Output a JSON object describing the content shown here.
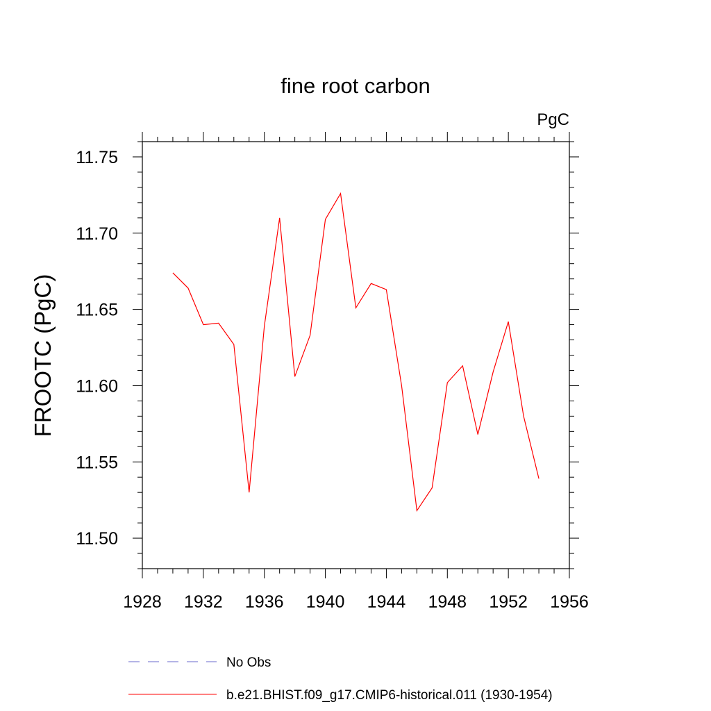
{
  "chart_data": {
    "type": "line",
    "title": "fine root carbon",
    "units_label": "PgC",
    "ylabel": "FROOTC  (PgC)",
    "xlabel": "",
    "xlim": [
      1928,
      1956
    ],
    "ylim": [
      11.48,
      11.76
    ],
    "x_ticks": [
      1928,
      1932,
      1936,
      1940,
      1944,
      1948,
      1952,
      1956
    ],
    "x_tick_labels": [
      "1928",
      "1932",
      "1936",
      "1940",
      "1944",
      "1948",
      "1952",
      "1956"
    ],
    "y_ticks": [
      11.5,
      11.55,
      11.6,
      11.65,
      11.7,
      11.75
    ],
    "y_tick_labels": [
      "11.50",
      "11.55",
      "11.60",
      "11.65",
      "11.70",
      "11.75"
    ],
    "grid": false,
    "legend_position": "bottom",
    "series": [
      {
        "name": "b.e21.BHIST.f09_g17.CMIP6-historical.011 (1930-1954)",
        "color": "#ff0000",
        "style": "solid",
        "x": [
          1930,
          1931,
          1932,
          1933,
          1934,
          1935,
          1936,
          1937,
          1938,
          1939,
          1940,
          1941,
          1942,
          1943,
          1944,
          1945,
          1946,
          1947,
          1948,
          1949,
          1950,
          1951,
          1952,
          1953,
          1954
        ],
        "y": [
          11.674,
          11.664,
          11.64,
          11.641,
          11.627,
          11.53,
          11.639,
          11.71,
          11.606,
          11.633,
          11.709,
          11.726,
          11.651,
          11.667,
          11.663,
          11.6,
          11.518,
          11.533,
          11.602,
          11.613,
          11.568,
          11.609,
          11.642,
          11.58,
          11.539
        ]
      }
    ],
    "legend": [
      {
        "label": "No Obs",
        "color": "#6a6acd",
        "style": "dashed"
      },
      {
        "label": "b.e21.BHIST.f09_g17.CMIP6-historical.011 (1930-1954)",
        "color": "#ff0000",
        "style": "solid"
      }
    ]
  }
}
